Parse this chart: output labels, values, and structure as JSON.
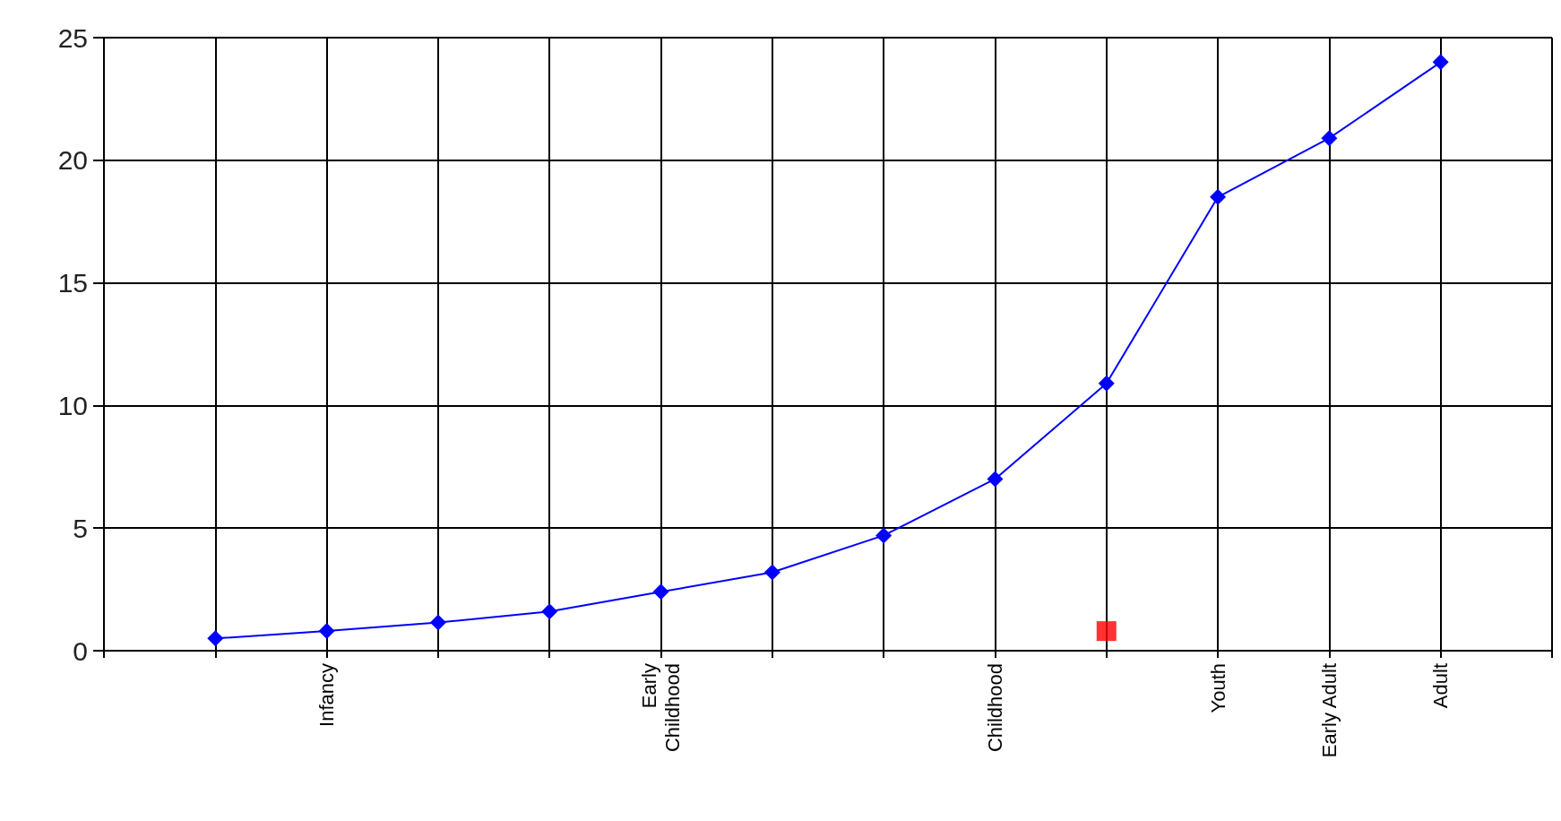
{
  "chart_data": {
    "type": "line",
    "categories": [
      null,
      null,
      "Infancy",
      null,
      null,
      "Early\nChildhood",
      null,
      null,
      "Childhood",
      null,
      "Youth",
      "Early Adult",
      "Adult",
      null
    ],
    "ylim": [
      0,
      25
    ],
    "yticks": [
      0,
      5,
      10,
      15,
      20,
      25
    ],
    "grid": true,
    "series": [
      {
        "color": "#0000ff",
        "marker": "diamond",
        "values": [
          null,
          0.5,
          0.8,
          1.15,
          1.6,
          2.4,
          3.2,
          4.7,
          7.0,
          10.9,
          18.5,
          20.9,
          24.0,
          null
        ]
      },
      {
        "type": "scatter",
        "color": "#ff0000",
        "marker": "square",
        "values": [
          null,
          null,
          null,
          null,
          null,
          null,
          null,
          null,
          null,
          0.8,
          null,
          null,
          null,
          null
        ]
      }
    ]
  }
}
